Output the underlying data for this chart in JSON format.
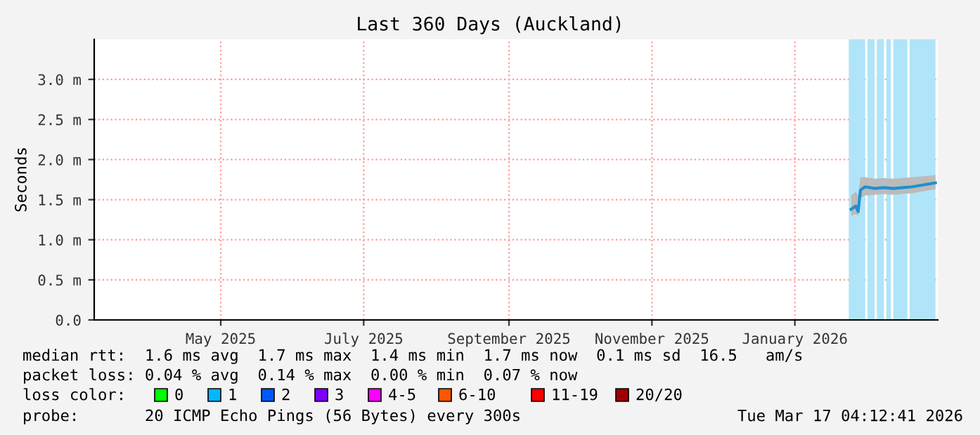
{
  "chart_data": {
    "type": "line",
    "title": "Last 360 Days (Auckland)",
    "ylabel": "Seconds",
    "x": [
      "2026-02-08",
      "2026-02-10",
      "2026-02-11",
      "2026-02-12",
      "2026-02-14",
      "2026-02-18",
      "2026-02-22",
      "2026-02-26",
      "2026-03-02",
      "2026-03-06",
      "2026-03-10",
      "2026-03-14",
      "2026-03-16"
    ],
    "series": [
      {
        "color": "#1e90d0",
        "values": [
          1.38,
          1.42,
          1.35,
          1.62,
          1.66,
          1.64,
          1.65,
          1.64,
          1.65,
          1.66,
          1.68,
          1.7,
          1.71
        ],
        "lower": [
          1.3,
          1.32,
          1.3,
          1.52,
          1.55,
          1.56,
          1.57,
          1.56,
          1.57,
          1.58,
          1.6,
          1.62,
          1.63
        ],
        "upper": [
          1.55,
          1.6,
          1.55,
          1.78,
          1.78,
          1.76,
          1.77,
          1.76,
          1.77,
          1.78,
          1.79,
          1.8,
          1.81
        ]
      }
    ],
    "xlim": [
      "2025-03-22",
      "2026-03-17"
    ],
    "xticks": [
      {
        "value": "2025-05-15",
        "label": "May 2025"
      },
      {
        "value": "2025-07-15",
        "label": "July 2025"
      },
      {
        "value": "2025-09-15",
        "label": "September 2025"
      },
      {
        "value": "2025-11-15",
        "label": "November 2025"
      },
      {
        "value": "2026-01-15",
        "label": "January 2026"
      }
    ],
    "ylim": [
      0,
      3.5
    ],
    "yticks": [
      {
        "value": 0,
        "label": "0.0"
      },
      {
        "value": 0.5,
        "label": "0.5 m"
      },
      {
        "value": 1,
        "label": "1.0 m"
      },
      {
        "value": 1.5,
        "label": "1.5 m"
      },
      {
        "value": 2,
        "label": "2.0 m"
      },
      {
        "value": 2.5,
        "label": "2.5 m"
      },
      {
        "value": 3,
        "label": "3.0 m"
      }
    ],
    "bands": [
      {
        "axis": "x",
        "from": "2026-02-07",
        "to": "2026-02-14",
        "color": "#b0e4f8"
      },
      {
        "axis": "x",
        "from": "2026-02-15",
        "to": "2026-02-18",
        "color": "#b0e4f8"
      },
      {
        "axis": "x",
        "from": "2026-02-19",
        "to": "2026-02-22",
        "color": "#b0e4f8"
      },
      {
        "axis": "x",
        "from": "2026-02-23",
        "to": "2026-02-25",
        "color": "#b0e4f8"
      },
      {
        "axis": "x",
        "from": "2026-02-26",
        "to": "2026-03-04",
        "color": "#b0e4f8"
      },
      {
        "axis": "x",
        "from": "2026-03-05",
        "to": "2026-03-16",
        "color": "#b0e4f8"
      }
    ],
    "grid": true,
    "legend": false,
    "annotations": [
      "median rtt:  1.6 ms avg  1.7 ms max  1.4 ms min  1.7 ms now  0.1 ms sd  16.5   am/s",
      "packet loss: 0.04 % avg  0.14 % max  0.00 % min  0.07 % now",
      "loss color:",
      "0",
      "1",
      "2",
      "3",
      "4-5",
      "6-10",
      "11-19",
      "20/20",
      "probe:       20 ICMP Echo Pings (56 Bytes) every 300s",
      "Tue Mar 17 04:12:41 2026"
    ]
  }
}
